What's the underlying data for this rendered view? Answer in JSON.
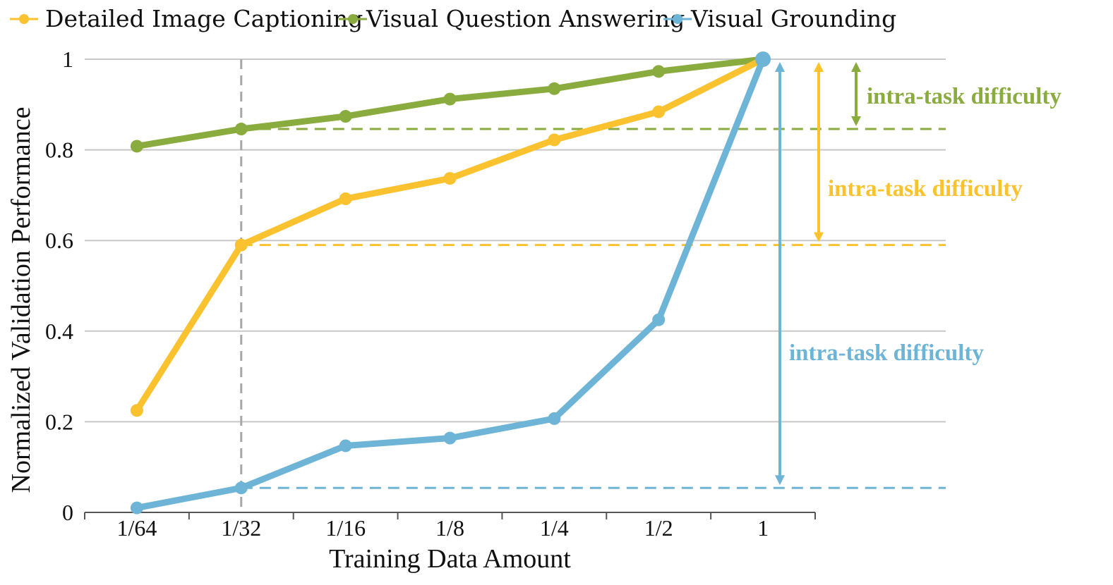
{
  "chart_data": {
    "type": "line",
    "title": "",
    "xlabel": "Training Data Amount",
    "ylabel": "Normalized Validation Performance",
    "categories": [
      "1/64",
      "1/32",
      "1/16",
      "1/8",
      "1/4",
      "1/2",
      "1"
    ],
    "yticks": [
      "0",
      "0.2",
      "0.4",
      "0.6",
      "0.8",
      "1"
    ],
    "ylim": [
      0,
      1
    ],
    "grid": true,
    "legend_position": "top",
    "series": [
      {
        "name": "Detailed Image Captioning",
        "color": "#F9C22E",
        "values": [
          0.225,
          0.59,
          0.692,
          0.737,
          0.822,
          0.884,
          1.0
        ]
      },
      {
        "name": "Visual Question Answering",
        "color": "#8AAB3D",
        "values": [
          0.808,
          0.846,
          0.874,
          0.912,
          0.935,
          0.973,
          1.0
        ]
      },
      {
        "name": "Visual Grounding",
        "color": "#6EB4D6",
        "values": [
          0.01,
          0.054,
          0.147,
          0.164,
          0.207,
          0.425,
          1.0
        ]
      }
    ],
    "reference_category": "1/32",
    "annotations": [
      {
        "text": "intra-task difficulty",
        "series": "Visual Question Answering",
        "from": 0.846,
        "to": 1.0,
        "color": "#8AAB3D"
      },
      {
        "text": "intra-task difficulty",
        "series": "Detailed Image Captioning",
        "from": 0.59,
        "to": 1.0,
        "color": "#F9C22E"
      },
      {
        "text": "intra-task difficulty",
        "series": "Visual Grounding",
        "from": 0.054,
        "to": 1.0,
        "color": "#6EB4D6"
      }
    ]
  }
}
